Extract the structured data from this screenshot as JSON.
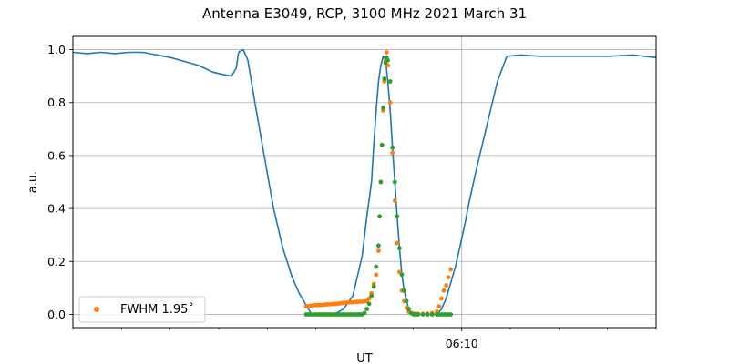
{
  "chart_data": {
    "type": "line",
    "title": "Antenna E3049, RCP, 3100 MHz 2021 March 31",
    "xlabel": "UT",
    "ylabel": "a.u.",
    "xlim": [
      6.0,
      6.25
    ],
    "ylim": [
      -0.05,
      1.05
    ],
    "yticks": [
      0.0,
      0.2,
      0.4,
      0.6,
      0.8,
      1.0
    ],
    "ytick_labels": [
      "0.0",
      "0.2",
      "0.4",
      "0.6",
      "0.8",
      "1.0"
    ],
    "xticks_major": [
      {
        "value": 6.1667,
        "label": "06:10"
      }
    ],
    "xticks_minor": [
      6.0,
      6.0208,
      6.0417,
      6.0625,
      6.0833,
      6.1042,
      6.125,
      6.1458,
      6.1875,
      6.2083,
      6.2292,
      6.25
    ],
    "grid": true,
    "legend_position": "lower-left",
    "legend_entries": [
      {
        "name": "FWHM 1.95$^\\circ$",
        "display": "FWHM 1.95˚",
        "color": "#ff7f0e"
      }
    ],
    "colors": {
      "line": "#1f77b4",
      "series_orange": "#ff7f0e",
      "series_green": "#2ca02c"
    },
    "series": [
      {
        "kind": "line",
        "color": "#1f77b4",
        "x": [
          6.0,
          6.006,
          6.012,
          6.018,
          6.024,
          6.03,
          6.036,
          6.042,
          6.048,
          6.054,
          6.06,
          6.065,
          6.068,
          6.07,
          6.071,
          6.073,
          6.075,
          6.078,
          6.082,
          6.086,
          6.09,
          6.094,
          6.097,
          6.1,
          6.102,
          6.104,
          6.108,
          6.112,
          6.116,
          6.12,
          6.124,
          6.126,
          6.128,
          6.129,
          6.13,
          6.131,
          6.132,
          6.133,
          6.134,
          6.135,
          6.136,
          6.137,
          6.138,
          6.139,
          6.14,
          6.141,
          6.142,
          6.143,
          6.144,
          6.145,
          6.146,
          6.147,
          6.148,
          6.15,
          6.152,
          6.154,
          6.156,
          6.158,
          6.16,
          6.162,
          6.164,
          6.166,
          6.168,
          6.17,
          6.173,
          6.176,
          6.179,
          6.182,
          6.186,
          6.192,
          6.2,
          6.21,
          6.22,
          6.23,
          6.24,
          6.25
        ],
        "y": [
          0.99,
          0.985,
          0.99,
          0.985,
          0.99,
          0.99,
          0.98,
          0.97,
          0.955,
          0.94,
          0.915,
          0.905,
          0.9,
          0.93,
          0.99,
          1.0,
          0.96,
          0.8,
          0.6,
          0.4,
          0.25,
          0.14,
          0.08,
          0.035,
          0.005,
          0.0,
          0.0,
          0.0,
          0.02,
          0.07,
          0.22,
          0.37,
          0.5,
          0.64,
          0.77,
          0.88,
          0.94,
          0.975,
          0.965,
          0.88,
          0.77,
          0.63,
          0.5,
          0.37,
          0.25,
          0.15,
          0.09,
          0.05,
          0.02,
          0.005,
          0.0,
          0.0,
          0.0,
          0.0,
          0.0,
          0.0,
          0.0,
          0.02,
          0.06,
          0.12,
          0.18,
          0.26,
          0.34,
          0.43,
          0.55,
          0.66,
          0.77,
          0.88,
          0.975,
          0.98,
          0.975,
          0.975,
          0.975,
          0.975,
          0.98,
          0.97
        ]
      },
      {
        "kind": "scatter",
        "name": "FWHM 1.95$^\\circ$",
        "color": "#ff7f0e",
        "x": [
          6.1,
          6.101,
          6.102,
          6.103,
          6.104,
          6.105,
          6.106,
          6.107,
          6.108,
          6.109,
          6.11,
          6.111,
          6.112,
          6.113,
          6.114,
          6.115,
          6.116,
          6.117,
          6.118,
          6.119,
          6.12,
          6.121,
          6.122,
          6.123,
          6.124,
          6.125,
          6.126,
          6.127,
          6.128,
          6.129,
          6.13,
          6.131,
          6.1315,
          6.132,
          6.1325,
          6.133,
          6.1335,
          6.134,
          6.1345,
          6.135,
          6.136,
          6.137,
          6.138,
          6.139,
          6.14,
          6.141,
          6.142,
          6.143,
          6.144,
          6.145,
          6.146,
          6.147,
          6.148,
          6.15,
          6.152,
          6.154,
          6.156,
          6.157,
          6.158,
          6.159,
          6.16,
          6.161,
          6.162
        ],
        "y": [
          0.03,
          0.032,
          0.033,
          0.034,
          0.035,
          0.035,
          0.036,
          0.036,
          0.037,
          0.038,
          0.038,
          0.039,
          0.04,
          0.04,
          0.041,
          0.042,
          0.043,
          0.044,
          0.045,
          0.046,
          0.046,
          0.047,
          0.047,
          0.048,
          0.048,
          0.049,
          0.05,
          0.06,
          0.08,
          0.115,
          0.15,
          0.24,
          0.37,
          0.5,
          0.64,
          0.77,
          0.88,
          0.96,
          0.99,
          0.94,
          0.8,
          0.61,
          0.43,
          0.27,
          0.16,
          0.09,
          0.05,
          0.025,
          0.01,
          0.005,
          0.003,
          0.002,
          0.002,
          0.002,
          0.003,
          0.005,
          0.01,
          0.03,
          0.06,
          0.09,
          0.11,
          0.14,
          0.17
        ]
      },
      {
        "kind": "scatter",
        "color": "#2ca02c",
        "x": [
          6.1,
          6.101,
          6.102,
          6.103,
          6.104,
          6.105,
          6.106,
          6.107,
          6.108,
          6.109,
          6.11,
          6.111,
          6.112,
          6.113,
          6.114,
          6.115,
          6.116,
          6.117,
          6.118,
          6.119,
          6.12,
          6.121,
          6.122,
          6.123,
          6.124,
          6.125,
          6.126,
          6.127,
          6.128,
          6.129,
          6.13,
          6.131,
          6.1315,
          6.132,
          6.1325,
          6.133,
          6.1335,
          6.134,
          6.1345,
          6.135,
          6.136,
          6.137,
          6.138,
          6.139,
          6.14,
          6.141,
          6.142,
          6.143,
          6.144,
          6.145,
          6.146,
          6.147,
          6.148,
          6.15,
          6.152,
          6.154,
          6.156,
          6.157,
          6.158,
          6.159,
          6.16,
          6.161,
          6.162
        ],
        "y": [
          0.0,
          0.0,
          0.0,
          0.0,
          0.0,
          0.0,
          0.0,
          0.0,
          0.0,
          0.0,
          0.0,
          0.0,
          0.0,
          0.0,
          0.0,
          0.0,
          0.0,
          0.0,
          0.0,
          0.0,
          0.0,
          0.0,
          0.0,
          0.0,
          0.0,
          0.005,
          0.02,
          0.04,
          0.07,
          0.105,
          0.18,
          0.26,
          0.37,
          0.5,
          0.64,
          0.78,
          0.89,
          0.95,
          0.97,
          0.96,
          0.88,
          0.63,
          0.5,
          0.37,
          0.25,
          0.15,
          0.09,
          0.05,
          0.02,
          0.005,
          0.0,
          0.0,
          0.0,
          0.0,
          0.0,
          0.0,
          0.0,
          0.0,
          0.0,
          0.0,
          0.0,
          0.0,
          0.0
        ]
      }
    ]
  }
}
